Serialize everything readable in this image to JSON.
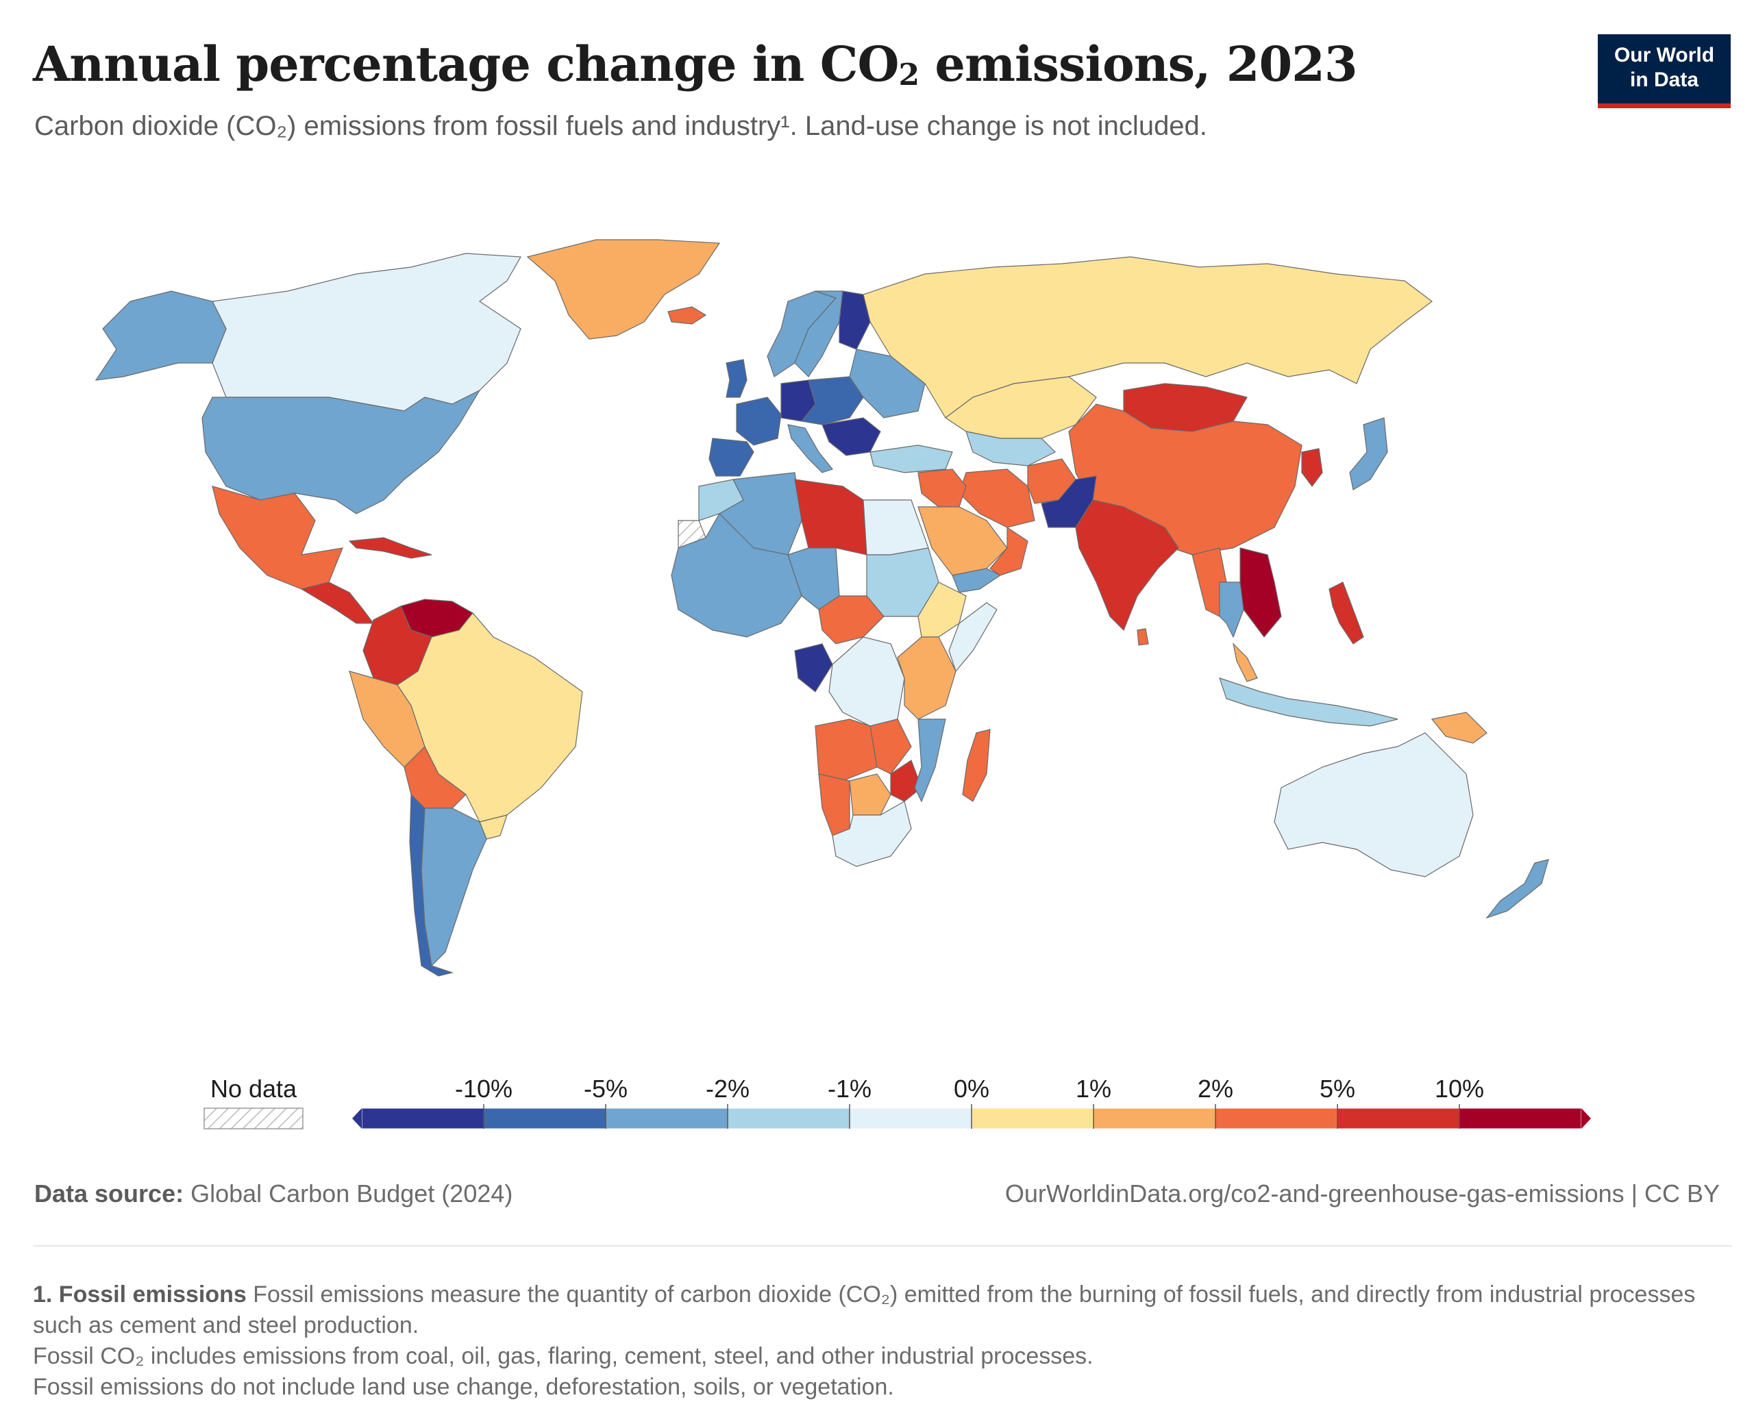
{
  "header": {
    "title_main": "Annual percentage change in CO",
    "title_sub": "2",
    "title_end": " emissions, 2023",
    "subtitle": "Carbon dioxide (CO₂) emissions from fossil fuels and industry¹. Land-use change is not included."
  },
  "logo": {
    "line1": "Our World",
    "line2": "in Data"
  },
  "legend": {
    "no_data_label": "No data",
    "bins": [
      {
        "color": "#2c3590"
      },
      {
        "color": "#3b67ad"
      },
      {
        "color": "#6fa5cf"
      },
      {
        "color": "#a9d3e7"
      },
      {
        "color": "#e3f1f8"
      },
      {
        "color": "#fde396"
      },
      {
        "color": "#f9ad63"
      },
      {
        "color": "#f06b40"
      },
      {
        "color": "#d3302a"
      },
      {
        "color": "#a50026"
      }
    ],
    "tick_labels": [
      "-10%",
      "-5%",
      "-2%",
      "-1%",
      "0%",
      "1%",
      "2%",
      "5%",
      "10%"
    ]
  },
  "footer": {
    "source_label": "Data source:",
    "source_text": " Global Carbon Budget (2024)",
    "url_text": "OurWorldinData.org/co2-and-greenhouse-gas-emissions | CC BY",
    "note_title": "1. Fossil emissions",
    "note_text": " Fossil emissions measure the quantity of carbon dioxide (CO₂) emitted from the burning of fossil fuels, and directly from industrial processes such as cement and steel production.",
    "note_line2": "Fossil CO₂ includes emissions from coal, oil, gas, flaring, cement, steel, and other industrial processes.",
    "note_line3": "Fossil emissions do not include land use change, deforestation, soils, or vegetation."
  },
  "regions": [
    {
      "id": "canada",
      "color": "#e3f1f8"
    },
    {
      "id": "greenland",
      "color": "#f9ad63"
    },
    {
      "id": "alaska",
      "color": "#6fa5cf"
    },
    {
      "id": "usa",
      "color": "#6fa5cf"
    },
    {
      "id": "mexico",
      "color": "#f06b40"
    },
    {
      "id": "central-america",
      "color": "#d3302a"
    },
    {
      "id": "cuba-caribbean",
      "color": "#d3302a"
    },
    {
      "id": "venezuela",
      "color": "#a50026"
    },
    {
      "id": "colombia",
      "color": "#d3302a"
    },
    {
      "id": "peru",
      "color": "#f9ad63"
    },
    {
      "id": "brazil",
      "color": "#fde396"
    },
    {
      "id": "bolivia",
      "color": "#f06b40"
    },
    {
      "id": "argentina",
      "color": "#6fa5cf"
    },
    {
      "id": "chile",
      "color": "#3b67ad"
    },
    {
      "id": "uruguay",
      "color": "#fde396"
    },
    {
      "id": "iceland",
      "color": "#f06b40"
    },
    {
      "id": "norway",
      "color": "#6fa5cf"
    },
    {
      "id": "sweden",
      "color": "#6fa5cf"
    },
    {
      "id": "finland",
      "color": "#2c3590"
    },
    {
      "id": "uk",
      "color": "#3b67ad"
    },
    {
      "id": "france",
      "color": "#3b67ad"
    },
    {
      "id": "iberia",
      "color": "#3b67ad"
    },
    {
      "id": "germany",
      "color": "#2c3590"
    },
    {
      "id": "central-europe",
      "color": "#3b67ad"
    },
    {
      "id": "italy",
      "color": "#6fa5cf"
    },
    {
      "id": "balkans",
      "color": "#2c3590"
    },
    {
      "id": "ukraine-belarus",
      "color": "#6fa5cf"
    },
    {
      "id": "russia",
      "color": "#fde396"
    },
    {
      "id": "turkey",
      "color": "#a9d3e7"
    },
    {
      "id": "kazakhstan",
      "color": "#fde396"
    },
    {
      "id": "central-asia",
      "color": "#a9d3e7"
    },
    {
      "id": "mongolia",
      "color": "#d3302a"
    },
    {
      "id": "china",
      "color": "#f06b40"
    },
    {
      "id": "korea",
      "color": "#d3302a"
    },
    {
      "id": "japan",
      "color": "#6fa5cf"
    },
    {
      "id": "iran",
      "color": "#f06b40"
    },
    {
      "id": "afghanistan",
      "color": "#f06b40"
    },
    {
      "id": "pakistan",
      "color": "#2c3590"
    },
    {
      "id": "india",
      "color": "#d3302a"
    },
    {
      "id": "sri-lanka",
      "color": "#f06b40"
    },
    {
      "id": "saudi-arabia",
      "color": "#f9ad63"
    },
    {
      "id": "oman-uae",
      "color": "#f06b40"
    },
    {
      "id": "yemen",
      "color": "#6fa5cf"
    },
    {
      "id": "iraq-syria",
      "color": "#f06b40"
    },
    {
      "id": "myanmar",
      "color": "#f06b40"
    },
    {
      "id": "thailand",
      "color": "#6fa5cf"
    },
    {
      "id": "vietnam",
      "color": "#a50026"
    },
    {
      "id": "malaysia",
      "color": "#f9ad63"
    },
    {
      "id": "indonesia",
      "color": "#a9d3e7"
    },
    {
      "id": "philippines",
      "color": "#d3302a"
    },
    {
      "id": "papua",
      "color": "#f9ad63"
    },
    {
      "id": "australia",
      "color": "#e3f1f8"
    },
    {
      "id": "new-zealand",
      "color": "#6fa5cf"
    },
    {
      "id": "morocco",
      "color": "#a9d3e7"
    },
    {
      "id": "western-sahara",
      "color": "#ffffff"
    },
    {
      "id": "algeria",
      "color": "#6fa5cf"
    },
    {
      "id": "libya",
      "color": "#d3302a"
    },
    {
      "id": "egypt",
      "color": "#e3f1f8"
    },
    {
      "id": "west-africa",
      "color": "#6fa5cf"
    },
    {
      "id": "chad",
      "color": "#6fa5cf"
    },
    {
      "id": "sudan",
      "color": "#a9d3e7"
    },
    {
      "id": "car-cameroon",
      "color": "#f06b40"
    },
    {
      "id": "ethiopia",
      "color": "#fde396"
    },
    {
      "id": "somalia",
      "color": "#e3f1f8"
    },
    {
      "id": "congo",
      "color": "#2c3590"
    },
    {
      "id": "drc",
      "color": "#e3f1f8"
    },
    {
      "id": "tanzania-kenya",
      "color": "#f9ad63"
    },
    {
      "id": "angola",
      "color": "#f06b40"
    },
    {
      "id": "zambia",
      "color": "#f06b40"
    },
    {
      "id": "zimbabwe",
      "color": "#d3302a"
    },
    {
      "id": "mozambique",
      "color": "#6fa5cf"
    },
    {
      "id": "namibia",
      "color": "#f06b40"
    },
    {
      "id": "botswana",
      "color": "#f9ad63"
    },
    {
      "id": "south-africa",
      "color": "#e3f1f8"
    },
    {
      "id": "madagascar",
      "color": "#f06b40"
    }
  ]
}
